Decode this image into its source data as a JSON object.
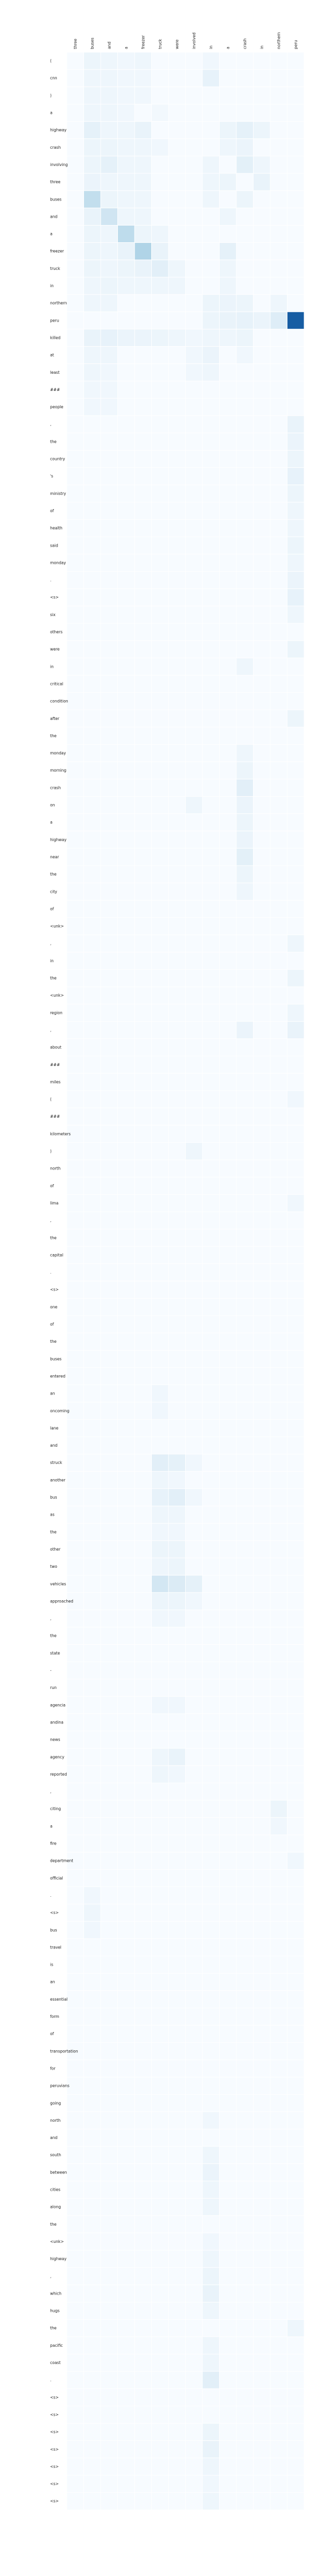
{
  "chart_data": {
    "type": "heatmap",
    "title": "",
    "xlabel": "",
    "ylabel": "",
    "x_labels": [
      "three",
      "buses",
      "and",
      "a",
      "freezer",
      "truck",
      "were",
      "involved",
      "in",
      "a",
      "crash",
      "in",
      "northern",
      "peru"
    ],
    "y_labels": [
      "(",
      "cnn",
      ")",
      "a",
      "highway",
      "crash",
      "involving",
      "three",
      "buses",
      "and",
      "a",
      "freezer",
      "truck",
      "in",
      "northern",
      "peru",
      "killed",
      "at",
      "least",
      "###",
      "people",
      ",",
      "the",
      "country",
      "'s",
      "ministry",
      "of",
      "health",
      "said",
      "monday",
      ".",
      "<s>",
      "six",
      "others",
      "were",
      "in",
      "critical",
      "condition",
      "after",
      "the",
      "monday",
      "morning",
      "crash",
      "on",
      "a",
      "highway",
      "near",
      "the",
      "city",
      "of",
      "<unk>",
      ",",
      "in",
      "the",
      "<unk>",
      "region",
      ",",
      "about",
      "###",
      "miles",
      "(",
      "###",
      "kilometers",
      ")",
      "north",
      "of",
      "lima",
      ",",
      "the",
      "capital",
      ".",
      "<s>",
      "one",
      "of",
      "the",
      "buses",
      "entered",
      "an",
      "oncoming",
      "lane",
      "and",
      "struck",
      "another",
      "bus",
      "as",
      "the",
      "other",
      "two",
      "vehicles",
      "approached",
      ",",
      "the",
      "state",
      "-",
      "run",
      "agencia",
      "andina",
      "news",
      "agency",
      "reported",
      ",",
      "citing",
      "a",
      "fire",
      "department",
      "official",
      ".",
      "<s>",
      "bus",
      "travel",
      "is",
      "an",
      "essential",
      "form",
      "of",
      "transportation",
      "for",
      "peruvians",
      "going",
      "north",
      "and",
      "south",
      "between",
      "cities",
      "along",
      "the",
      "<unk>",
      "highway",
      ",",
      "which",
      "hugs",
      "the",
      "pacific",
      "coast",
      ".",
      "<s>",
      "<s>",
      "<s>",
      "<s>",
      "<s>",
      "<s>",
      "<s>"
    ],
    "value_range": [
      0,
      1
    ],
    "colormap": {
      "low": "#f7fbff",
      "mid": "#9ecae1",
      "high": "#08519c"
    },
    "cells": [
      [
        0,
        1,
        0.06
      ],
      [
        0,
        2,
        0.05
      ],
      [
        0,
        3,
        0.04
      ],
      [
        0,
        4,
        0.05
      ],
      [
        0,
        8,
        0.04
      ],
      [
        1,
        1,
        0.05
      ],
      [
        1,
        2,
        0.05
      ],
      [
        1,
        3,
        0.04
      ],
      [
        1,
        4,
        0.04
      ],
      [
        1,
        8,
        0.09
      ],
      [
        2,
        1,
        0.05
      ],
      [
        2,
        2,
        0.05
      ],
      [
        2,
        3,
        0.04
      ],
      [
        2,
        4,
        0.04
      ],
      [
        3,
        1,
        0.05
      ],
      [
        3,
        2,
        0.05
      ],
      [
        3,
        3,
        0.04
      ],
      [
        3,
        5,
        0.03
      ],
      [
        4,
        1,
        0.1
      ],
      [
        4,
        2,
        0.05
      ],
      [
        4,
        3,
        0.05
      ],
      [
        4,
        4,
        0.08
      ],
      [
        4,
        9,
        0.06
      ],
      [
        4,
        10,
        0.1
      ],
      [
        4,
        11,
        0.06
      ],
      [
        5,
        1,
        0.06
      ],
      [
        5,
        2,
        0.06
      ],
      [
        5,
        3,
        0.05
      ],
      [
        5,
        4,
        0.05
      ],
      [
        5,
        5,
        0.04
      ],
      [
        5,
        9,
        0.05
      ],
      [
        5,
        10,
        0.07
      ],
      [
        6,
        1,
        0.06
      ],
      [
        6,
        2,
        0.1
      ],
      [
        6,
        3,
        0.05
      ],
      [
        6,
        4,
        0.05
      ],
      [
        6,
        8,
        0.05
      ],
      [
        6,
        10,
        0.11
      ],
      [
        6,
        11,
        0.05
      ],
      [
        7,
        1,
        0.07
      ],
      [
        7,
        2,
        0.05
      ],
      [
        7,
        3,
        0.05
      ],
      [
        7,
        4,
        0.05
      ],
      [
        7,
        8,
        0.05
      ],
      [
        7,
        9,
        0.06
      ],
      [
        7,
        11,
        0.08
      ],
      [
        8,
        1,
        0.3
      ],
      [
        8,
        2,
        0.06
      ],
      [
        8,
        3,
        0.05
      ],
      [
        8,
        4,
        0.05
      ],
      [
        8,
        8,
        0.05
      ],
      [
        8,
        10,
        0.06
      ],
      [
        9,
        1,
        0.08
      ],
      [
        9,
        2,
        0.22
      ],
      [
        9,
        3,
        0.05
      ],
      [
        9,
        4,
        0.05
      ],
      [
        9,
        9,
        0.05
      ],
      [
        10,
        1,
        0.06
      ],
      [
        10,
        2,
        0.05
      ],
      [
        10,
        3,
        0.32
      ],
      [
        10,
        4,
        0.06
      ],
      [
        10,
        5,
        0.05
      ],
      [
        11,
        1,
        0.06
      ],
      [
        11,
        2,
        0.05
      ],
      [
        11,
        3,
        0.08
      ],
      [
        11,
        4,
        0.4
      ],
      [
        11,
        5,
        0.08
      ],
      [
        11,
        9,
        0.1
      ],
      [
        12,
        1,
        0.06
      ],
      [
        12,
        2,
        0.05
      ],
      [
        12,
        3,
        0.06
      ],
      [
        12,
        4,
        0.08
      ],
      [
        12,
        5,
        0.12
      ],
      [
        12,
        6,
        0.05
      ],
      [
        12,
        9,
        0.05
      ],
      [
        13,
        1,
        0.05
      ],
      [
        13,
        2,
        0.06
      ],
      [
        13,
        3,
        0.05
      ],
      [
        13,
        4,
        0.05
      ],
      [
        13,
        5,
        0.05
      ],
      [
        13,
        6,
        0.05
      ],
      [
        13,
        9,
        0.05
      ],
      [
        14,
        1,
        0.05
      ],
      [
        14,
        2,
        0.05
      ],
      [
        14,
        8,
        0.06
      ],
      [
        14,
        9,
        0.07
      ],
      [
        14,
        10,
        0.06
      ],
      [
        14,
        12,
        0.05
      ],
      [
        15,
        8,
        0.06
      ],
      [
        15,
        9,
        0.08
      ],
      [
        15,
        10,
        0.09
      ],
      [
        15,
        11,
        0.07
      ],
      [
        15,
        12,
        0.14
      ],
      [
        15,
        13,
        0.95
      ],
      [
        16,
        1,
        0.08
      ],
      [
        16,
        2,
        0.09
      ],
      [
        16,
        3,
        0.07
      ],
      [
        16,
        4,
        0.07
      ],
      [
        16,
        5,
        0.06
      ],
      [
        16,
        6,
        0.05
      ],
      [
        16,
        7,
        0.04
      ],
      [
        16,
        8,
        0.05
      ],
      [
        16,
        9,
        0.05
      ],
      [
        16,
        10,
        0.06
      ],
      [
        17,
        1,
        0.05
      ],
      [
        17,
        2,
        0.05
      ],
      [
        17,
        7,
        0.04
      ],
      [
        17,
        8,
        0.07
      ],
      [
        17,
        10,
        0.04
      ],
      [
        18,
        1,
        0.05
      ],
      [
        18,
        2,
        0.04
      ],
      [
        18,
        7,
        0.04
      ],
      [
        18,
        8,
        0.05
      ],
      [
        19,
        1,
        0.04
      ],
      [
        19,
        2,
        0.04
      ],
      [
        20,
        1,
        0.04
      ],
      [
        20,
        2,
        0.04
      ],
      [
        21,
        13,
        0.08
      ],
      [
        22,
        13,
        0.07
      ],
      [
        23,
        13,
        0.06
      ],
      [
        24,
        13,
        0.09
      ],
      [
        25,
        13,
        0.06
      ],
      [
        26,
        13,
        0.05
      ],
      [
        27,
        13,
        0.05
      ],
      [
        28,
        13,
        0.06
      ],
      [
        29,
        13,
        0.05
      ],
      [
        30,
        13,
        0.07
      ],
      [
        31,
        13,
        0.09
      ],
      [
        32,
        13,
        0.05
      ],
      [
        34,
        13,
        0.06
      ],
      [
        35,
        10,
        0.05
      ],
      [
        38,
        13,
        0.06
      ],
      [
        40,
        10,
        0.05
      ],
      [
        41,
        10,
        0.06
      ],
      [
        42,
        10,
        0.12
      ],
      [
        43,
        7,
        0.05
      ],
      [
        43,
        10,
        0.07
      ],
      [
        44,
        10,
        0.06
      ],
      [
        45,
        10,
        0.07
      ],
      [
        46,
        10,
        0.11
      ],
      [
        47,
        10,
        0.06
      ],
      [
        48,
        10,
        0.05
      ],
      [
        51,
        13,
        0.05
      ],
      [
        53,
        13,
        0.06
      ],
      [
        55,
        13,
        0.05
      ],
      [
        56,
        10,
        0.07
      ],
      [
        56,
        13,
        0.08
      ],
      [
        60,
        13,
        0.04
      ],
      [
        63,
        7,
        0.05
      ],
      [
        66,
        13,
        0.04
      ],
      [
        77,
        5,
        0.04
      ],
      [
        78,
        5,
        0.04
      ],
      [
        81,
        5,
        0.12
      ],
      [
        81,
        6,
        0.1
      ],
      [
        81,
        7,
        0.04
      ],
      [
        82,
        5,
        0.05
      ],
      [
        82,
        6,
        0.04
      ],
      [
        83,
        5,
        0.09
      ],
      [
        83,
        6,
        0.12
      ],
      [
        83,
        7,
        0.04
      ],
      [
        84,
        5,
        0.05
      ],
      [
        84,
        6,
        0.05
      ],
      [
        85,
        5,
        0.04
      ],
      [
        85,
        6,
        0.04
      ],
      [
        86,
        5,
        0.06
      ],
      [
        86,
        6,
        0.06
      ],
      [
        87,
        5,
        0.05
      ],
      [
        87,
        6,
        0.06
      ],
      [
        88,
        5,
        0.2
      ],
      [
        88,
        6,
        0.16
      ],
      [
        88,
        7,
        0.1
      ],
      [
        89,
        5,
        0.06
      ],
      [
        89,
        6,
        0.06
      ],
      [
        89,
        7,
        0.04
      ],
      [
        90,
        5,
        0.04
      ],
      [
        90,
        6,
        0.04
      ],
      [
        95,
        5,
        0.04
      ],
      [
        95,
        6,
        0.04
      ],
      [
        98,
        5,
        0.05
      ],
      [
        98,
        6,
        0.08
      ],
      [
        99,
        5,
        0.05
      ],
      [
        99,
        6,
        0.04
      ],
      [
        101,
        12,
        0.06
      ],
      [
        102,
        12,
        0.04
      ],
      [
        104,
        13,
        0.04
      ],
      [
        106,
        1,
        0.04
      ],
      [
        107,
        1,
        0.05
      ],
      [
        108,
        1,
        0.04
      ],
      [
        119,
        8,
        0.04
      ],
      [
        121,
        8,
        0.05
      ],
      [
        122,
        8,
        0.07
      ],
      [
        123,
        8,
        0.05
      ],
      [
        124,
        8,
        0.05
      ],
      [
        126,
        8,
        0.04
      ],
      [
        127,
        8,
        0.05
      ],
      [
        128,
        8,
        0.06
      ],
      [
        129,
        8,
        0.08
      ],
      [
        130,
        8,
        0.05
      ],
      [
        131,
        13,
        0.05
      ],
      [
        132,
        8,
        0.05
      ],
      [
        133,
        8,
        0.05
      ],
      [
        134,
        8,
        0.12
      ],
      [
        137,
        8,
        0.06
      ],
      [
        138,
        8,
        0.08
      ],
      [
        139,
        8,
        0.05
      ],
      [
        140,
        8,
        0.04
      ],
      [
        141,
        8,
        0.05
      ],
      [
        142,
        8,
        0.05
      ],
      [
        143,
        8,
        0.05
      ]
    ]
  }
}
